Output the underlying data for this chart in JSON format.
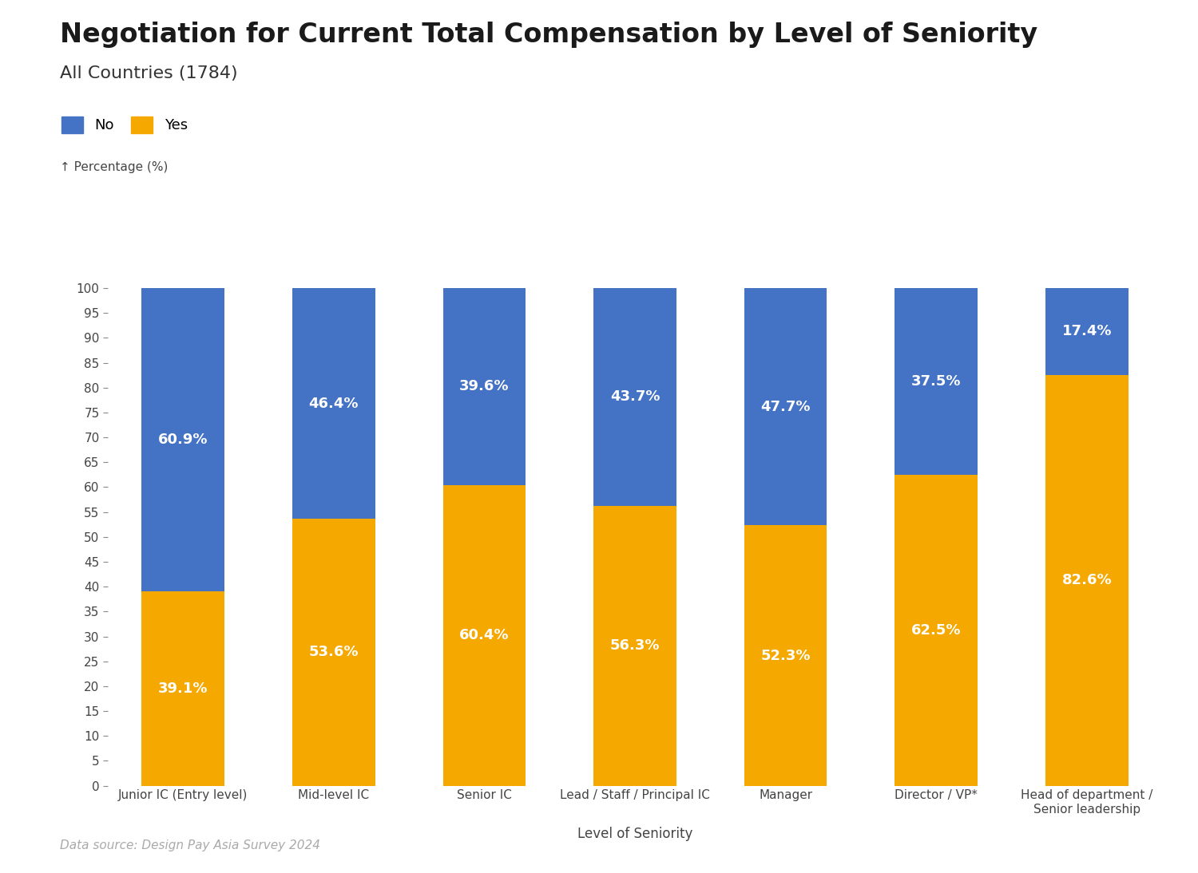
{
  "title": "Negotiation for Current Total Compensation by Level of Seniority",
  "subtitle": "All Countries (1784)",
  "categories": [
    "Junior IC (Entry level)",
    "Mid-level IC",
    "Senior IC",
    "Lead / Staff / Principal IC",
    "Manager",
    "Director / VP*",
    "Head of department /\nSenior leadership"
  ],
  "yes_values": [
    39.1,
    53.6,
    60.4,
    56.3,
    52.3,
    62.5,
    82.6
  ],
  "no_values": [
    60.9,
    46.4,
    39.6,
    43.7,
    47.7,
    37.5,
    17.4
  ],
  "yes_color": "#F5A800",
  "no_color": "#4472C4",
  "xlabel": "Level of Seniority",
  "ylabel": "↑ Percentage (%)",
  "ylim": [
    0,
    100
  ],
  "yticks": [
    0,
    5,
    10,
    15,
    20,
    25,
    30,
    35,
    40,
    45,
    50,
    55,
    60,
    65,
    70,
    75,
    80,
    85,
    90,
    95,
    100
  ],
  "data_source": "Data source: Design Pay Asia Survey 2024",
  "background_color": "#ffffff",
  "legend_fontsize": 13,
  "title_fontsize": 24,
  "subtitle_fontsize": 16,
  "axis_label_fontsize": 12,
  "tick_fontsize": 11,
  "bar_label_fontsize": 13,
  "ylabel_fontsize": 11
}
